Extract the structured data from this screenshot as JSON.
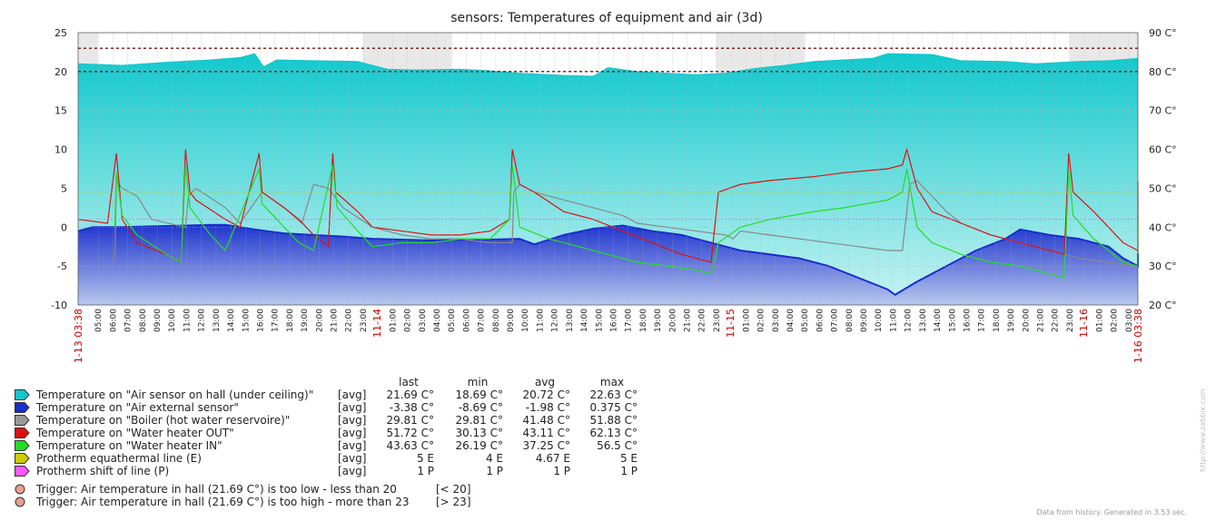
{
  "chart_data": {
    "type": "area",
    "title": "sensors: Temperatures of equipment and air (3d)",
    "x_start": "11-13 03:38",
    "x_end": "11-16 03:38",
    "date_labels": [
      "11-13 03:38",
      "11-14",
      "11-15",
      "11-16",
      "11-16 03:38"
    ],
    "hour_ticks": [
      "05:00",
      "06:00",
      "07:00",
      "08:00",
      "09:00",
      "10:00",
      "11:00",
      "12:00",
      "13:00",
      "14:00",
      "15:00",
      "16:00",
      "17:00",
      "18:00",
      "19:00",
      "20:00",
      "21:00",
      "22:00",
      "23:00",
      "11-14",
      "01:00",
      "02:00",
      "03:00",
      "04:00",
      "05:00",
      "06:00",
      "07:00",
      "08:00",
      "09:00",
      "10:00",
      "11:00",
      "12:00",
      "13:00",
      "14:00",
      "15:00",
      "16:00",
      "17:00",
      "18:00",
      "19:00",
      "20:00",
      "21:00",
      "22:00",
      "23:00",
      "11-15",
      "01:00",
      "02:00",
      "03:00",
      "04:00",
      "05:00",
      "06:00",
      "07:00",
      "08:00",
      "09:00",
      "10:00",
      "11:00",
      "12:00",
      "13:00",
      "14:00",
      "15:00",
      "16:00",
      "17:00",
      "18:00",
      "19:00",
      "20:00",
      "21:00",
      "22:00",
      "23:00",
      "11-16",
      "01:00",
      "02:00",
      "03:00"
    ],
    "y_left": {
      "min": -10,
      "max": 25,
      "ticks": [
        -10,
        -5,
        0,
        5,
        10,
        15,
        20,
        25
      ]
    },
    "y_right": {
      "min": 20,
      "max": 90,
      "ticks": [
        "20 C°",
        "30 C°",
        "40 C°",
        "50 C°",
        "60 C°",
        "70 C°",
        "80 C°",
        "90 C°"
      ]
    },
    "grid": true,
    "trigger_lines": [
      20,
      23
    ],
    "series": [
      {
        "name": "Air sensor on hall",
        "color": "#11c8cc",
        "axis": "left",
        "kind": "area",
        "points": [
          [
            0,
            21
          ],
          [
            3,
            20.8
          ],
          [
            6,
            21.2
          ],
          [
            9,
            21.5
          ],
          [
            11,
            21.8
          ],
          [
            12,
            22.3
          ],
          [
            12.6,
            20.6
          ],
          [
            13.5,
            21.5
          ],
          [
            16,
            21.4
          ],
          [
            19,
            21.3
          ],
          [
            21,
            20.3
          ],
          [
            23,
            20.2
          ],
          [
            26,
            20.3
          ],
          [
            28,
            20.1
          ],
          [
            30,
            19.8
          ],
          [
            33,
            19.5
          ],
          [
            35,
            19.4
          ],
          [
            36,
            20.5
          ],
          [
            38,
            20.0
          ],
          [
            40,
            19.8
          ],
          [
            42,
            19.6
          ],
          [
            44,
            19.8
          ],
          [
            46,
            20.4
          ],
          [
            48,
            20.8
          ],
          [
            50,
            21.3
          ],
          [
            52,
            21.5
          ],
          [
            54,
            21.7
          ],
          [
            55,
            22.3
          ],
          [
            58,
            22.2
          ],
          [
            60,
            21.4
          ],
          [
            63,
            21.3
          ],
          [
            65,
            21.0
          ],
          [
            68,
            21.3
          ],
          [
            70,
            21.4
          ],
          [
            72,
            21.69
          ]
        ]
      },
      {
        "name": "Air external sensor",
        "color": "#1a2ccc",
        "axis": "left",
        "kind": "area",
        "points": [
          [
            0,
            -0.5
          ],
          [
            1,
            0
          ],
          [
            3,
            0
          ],
          [
            5,
            0.1
          ],
          [
            7,
            0.2
          ],
          [
            9,
            0.3
          ],
          [
            10,
            0.3
          ],
          [
            12,
            -0.3
          ],
          [
            14,
            -0.8
          ],
          [
            16,
            -1
          ],
          [
            18,
            -1.2
          ],
          [
            20,
            -1.5
          ],
          [
            22,
            -1.6
          ],
          [
            24,
            -1.7
          ],
          [
            26,
            -1.6
          ],
          [
            28,
            -1.6
          ],
          [
            30,
            -1.5
          ],
          [
            31,
            -2.2
          ],
          [
            33,
            -1.0
          ],
          [
            35,
            -0.2
          ],
          [
            37,
            0.2
          ],
          [
            39,
            -0.5
          ],
          [
            41,
            -1.0
          ],
          [
            43,
            -2.0
          ],
          [
            45,
            -3.0
          ],
          [
            47,
            -3.5
          ],
          [
            49,
            -4.0
          ],
          [
            51,
            -5.0
          ],
          [
            53,
            -6.5
          ],
          [
            55,
            -8.0
          ],
          [
            55.5,
            -8.69
          ],
          [
            57,
            -7.0
          ],
          [
            59,
            -5.0
          ],
          [
            61,
            -3.0
          ],
          [
            63,
            -1.5
          ],
          [
            64,
            -0.3
          ],
          [
            66,
            -1.0
          ],
          [
            68,
            -1.5
          ],
          [
            70,
            -2.5
          ],
          [
            71,
            -4.0
          ],
          [
            72,
            -5.0
          ],
          [
            74,
            -4.0
          ],
          [
            72.0,
            -3.38
          ]
        ]
      },
      {
        "name": "Boiler",
        "color": "#888888",
        "axis": "right",
        "kind": "line",
        "points": [
          [
            2.5,
            31
          ],
          [
            2.6,
            52
          ],
          [
            3,
            50
          ],
          [
            4,
            48
          ],
          [
            5,
            42
          ],
          [
            7.3,
            40
          ],
          [
            7.5,
            48
          ],
          [
            8,
            50
          ],
          [
            10,
            45
          ],
          [
            11,
            41
          ],
          [
            12.3,
            48
          ],
          [
            12.5,
            49
          ],
          [
            14,
            45
          ],
          [
            15.2,
            41
          ],
          [
            16,
            51
          ],
          [
            17,
            50
          ],
          [
            18,
            45
          ],
          [
            20,
            40
          ],
          [
            22,
            38
          ],
          [
            24,
            37
          ],
          [
            26,
            37
          ],
          [
            28,
            36
          ],
          [
            29.5,
            36
          ],
          [
            29.6,
            49
          ],
          [
            30,
            51
          ],
          [
            31,
            49
          ],
          [
            33,
            47
          ],
          [
            35,
            45
          ],
          [
            37,
            43
          ],
          [
            38,
            41
          ],
          [
            40,
            40
          ],
          [
            42,
            39
          ],
          [
            44,
            38
          ],
          [
            44.5,
            37
          ],
          [
            45,
            39
          ],
          [
            47,
            38
          ],
          [
            49,
            37
          ],
          [
            51,
            36
          ],
          [
            53,
            35
          ],
          [
            55,
            34
          ],
          [
            56,
            34
          ],
          [
            56.5,
            51
          ],
          [
            57,
            52
          ],
          [
            58,
            48
          ],
          [
            59,
            44
          ],
          [
            60,
            41
          ],
          [
            62,
            38
          ],
          [
            64,
            36
          ],
          [
            66,
            34
          ],
          [
            68,
            32
          ],
          [
            70,
            31
          ],
          [
            71,
            30.5
          ],
          [
            72,
            29.81
          ]
        ]
      },
      {
        "name": "Water heater OUT",
        "color": "#dd1111",
        "axis": "right",
        "kind": "line",
        "points": [
          [
            0,
            42
          ],
          [
            2,
            41
          ],
          [
            2.6,
            59
          ],
          [
            3,
            42
          ],
          [
            4,
            36
          ],
          [
            6,
            33
          ],
          [
            7,
            31
          ],
          [
            7.3,
            60
          ],
          [
            7.6,
            49
          ],
          [
            8,
            47
          ],
          [
            10,
            42
          ],
          [
            11,
            40
          ],
          [
            12.3,
            59
          ],
          [
            12.5,
            49
          ],
          [
            14,
            45
          ],
          [
            15,
            42
          ],
          [
            16,
            38
          ],
          [
            17,
            35
          ],
          [
            17.3,
            59
          ],
          [
            17.5,
            49
          ],
          [
            19,
            44
          ],
          [
            20,
            40
          ],
          [
            22,
            39
          ],
          [
            24,
            38
          ],
          [
            26,
            38
          ],
          [
            28,
            39
          ],
          [
            29.3,
            42
          ],
          [
            29.5,
            60
          ],
          [
            30,
            51
          ],
          [
            31,
            49
          ],
          [
            33,
            44
          ],
          [
            35,
            42
          ],
          [
            37,
            39
          ],
          [
            39,
            36
          ],
          [
            41,
            33
          ],
          [
            43,
            31
          ],
          [
            43.5,
            49
          ],
          [
            45,
            51
          ],
          [
            47,
            52
          ],
          [
            50,
            53
          ],
          [
            52,
            54
          ],
          [
            55,
            55
          ],
          [
            56,
            56
          ],
          [
            56.3,
            60
          ],
          [
            57,
            50
          ],
          [
            58,
            44
          ],
          [
            60,
            41
          ],
          [
            62,
            38
          ],
          [
            64,
            36
          ],
          [
            66,
            34
          ],
          [
            67,
            33
          ],
          [
            67.3,
            59
          ],
          [
            67.6,
            49
          ],
          [
            69,
            44
          ],
          [
            70,
            40
          ],
          [
            71,
            36
          ],
          [
            72,
            34
          ],
          [
            73,
            33
          ],
          [
            74,
            43
          ],
          [
            75,
            48
          ],
          [
            76,
            50
          ],
          [
            78,
            49
          ],
          [
            72,
            51.72
          ]
        ]
      },
      {
        "name": "Water heater IN",
        "color": "#22dd22",
        "axis": "right",
        "kind": "line",
        "points": [
          [
            2.5,
            40
          ],
          [
            2.6,
            54
          ],
          [
            3,
            43
          ],
          [
            4,
            38
          ],
          [
            6,
            33
          ],
          [
            7,
            31
          ],
          [
            7.3,
            56
          ],
          [
            7.6,
            45
          ],
          [
            9,
            38
          ],
          [
            10,
            34
          ],
          [
            12.3,
            55
          ],
          [
            12.5,
            46
          ],
          [
            14,
            40
          ],
          [
            15,
            36
          ],
          [
            16,
            34
          ],
          [
            17.3,
            56
          ],
          [
            17.6,
            45
          ],
          [
            19,
            39
          ],
          [
            20,
            35
          ],
          [
            22,
            36
          ],
          [
            24,
            36
          ],
          [
            26,
            37
          ],
          [
            28,
            37
          ],
          [
            29.3,
            42
          ],
          [
            29.5,
            56
          ],
          [
            30,
            40
          ],
          [
            32,
            37
          ],
          [
            34,
            35
          ],
          [
            36,
            33
          ],
          [
            38,
            31
          ],
          [
            40,
            30
          ],
          [
            42,
            29
          ],
          [
            43,
            28
          ],
          [
            43.5,
            36
          ],
          [
            45,
            40
          ],
          [
            47,
            42
          ],
          [
            50,
            44
          ],
          [
            52,
            45
          ],
          [
            55,
            47
          ],
          [
            56,
            49
          ],
          [
            56.3,
            55
          ],
          [
            57,
            40
          ],
          [
            58,
            36
          ],
          [
            60,
            33
          ],
          [
            62,
            31
          ],
          [
            64,
            30
          ],
          [
            66,
            28
          ],
          [
            67,
            27
          ],
          [
            67.3,
            55
          ],
          [
            67.6,
            43
          ],
          [
            69,
            37
          ],
          [
            70,
            34
          ],
          [
            71,
            31
          ],
          [
            72,
            30
          ],
          [
            73,
            32
          ],
          [
            74,
            40
          ],
          [
            76,
            43
          ],
          [
            78,
            44
          ],
          [
            72,
            43.63
          ]
        ]
      }
    ],
    "legend": {
      "headers": [
        "last",
        "min",
        "avg",
        "max"
      ],
      "rows": [
        {
          "color": "#11c8cc",
          "name": "Temperature on \"Air sensor on hall (under ceiling)\"",
          "func": "[avg]",
          "last": "21.69 C°",
          "min": "18.69 C°",
          "avg": "20.72 C°",
          "max": "22.63 C°"
        },
        {
          "color": "#1a2ccc",
          "name": "Temperature on \"Air external sensor\"",
          "func": "[avg]",
          "last": "-3.38 C°",
          "min": "-8.69 C°",
          "avg": "-1.98 C°",
          "max": "0.375 C°"
        },
        {
          "color": "#999999",
          "name": "Temperature on \"Boiler (hot water reservoire)\"",
          "func": "[avg]",
          "last": "29.81 C°",
          "min": "29.81 C°",
          "avg": "41.48 C°",
          "max": "51.88 C°"
        },
        {
          "color": "#dd1111",
          "name": "Temperature on \"Water heater OUT\"",
          "func": "[avg]",
          "last": "51.72 C°",
          "min": "30.13 C°",
          "avg": "43.11 C°",
          "max": "62.13 C°"
        },
        {
          "color": "#22dd22",
          "name": "Temperature on \"Water heater IN\"",
          "func": "[avg]",
          "last": "43.63 C°",
          "min": "26.19 C°",
          "avg": "37.25 C°",
          "max": "56.5 C°"
        },
        {
          "color": "#cccc00",
          "name": "Protherm equathermal line (E)",
          "func": "[avg]",
          "last": "5 E",
          "min": "4 E",
          "avg": "4.67 E",
          "max": "5 E"
        },
        {
          "color": "#ff55ff",
          "name": "Protherm shift of line (P)",
          "func": "[avg]",
          "last": "1 P",
          "min": "1 P",
          "avg": "1 P",
          "max": "1 P"
        }
      ],
      "triggers": [
        {
          "text": "Trigger: Air temperature in hall (21.69 C°) is too low - less than 20",
          "cond": "[< 20]",
          "color": "#e8a090"
        },
        {
          "text": "Trigger: Air temperature in hall (21.69 C°) is too high - more than 23",
          "cond": "[> 23]",
          "color": "#e8a090"
        }
      ]
    },
    "footer": "Data from history. Generated in 3.53 sec.",
    "watermark": "http://www.zabbix.com"
  }
}
